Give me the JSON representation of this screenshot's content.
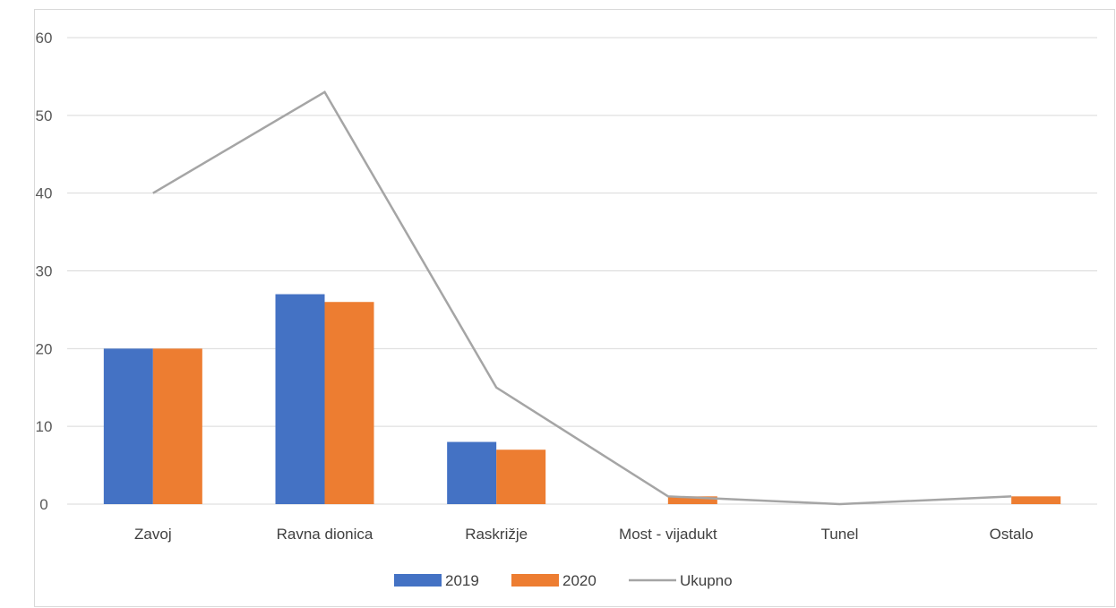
{
  "chart_data": {
    "type": "bar",
    "categories": [
      "Zavoj",
      "Ravna dionica",
      "Raskrižje",
      "Most - vijadukt",
      "Tunel",
      "Ostalo"
    ],
    "series": [
      {
        "name": "2019",
        "type": "bar",
        "color": "#4472c4",
        "values": [
          20,
          27,
          8,
          0,
          0,
          0
        ]
      },
      {
        "name": "2020",
        "type": "bar",
        "color": "#ed7d31",
        "values": [
          20,
          26,
          7,
          1,
          0,
          1
        ]
      },
      {
        "name": "Ukupno",
        "type": "line",
        "color": "#a5a5a5",
        "values": [
          40,
          53,
          15,
          1,
          0,
          1
        ]
      }
    ],
    "title": "",
    "xlabel": "",
    "ylabel": "",
    "ylim": [
      0,
      60
    ],
    "yticks": [
      0,
      10,
      20,
      30,
      40,
      50,
      60
    ],
    "grid": true,
    "legend_position": "bottom",
    "gridline_color": "#d9d9d9"
  }
}
